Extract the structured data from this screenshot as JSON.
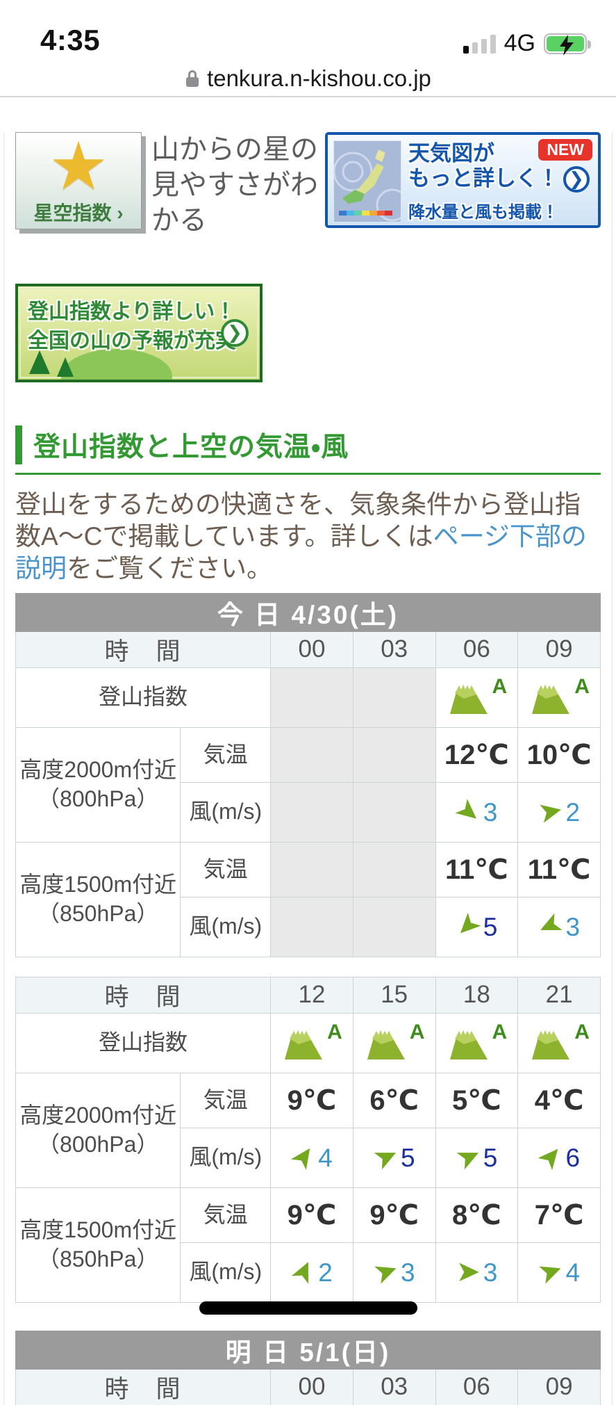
{
  "status_bar": {
    "time": "4:35",
    "network": "4G"
  },
  "url_bar": {
    "host": "tenkura.n-kishou.co.jp"
  },
  "promos": {
    "star": {
      "label": "星空指数",
      "chevron": "›",
      "caption": "山からの星の見やすさがわかる"
    },
    "map": {
      "title1": "天気図が",
      "title2": "もっと詳しく！",
      "arrow": "❯",
      "badge": "NEW",
      "sub": "降水量と風も掲載！"
    },
    "green": {
      "line1": "登山指数より詳しい！",
      "line2": "全国の山の予報が充実",
      "arrow": "❯"
    }
  },
  "section": {
    "title": "登山指数と上空の気温・風",
    "p_before": "登山をするための快適さを、気象条件から登山指数A～Cで掲載しています。詳しくは",
    "p_link": "ページ下部の説明",
    "p_after": "をご覧ください。"
  },
  "labels": {
    "time": "時　間",
    "index": "登山指数",
    "alt2000_1": "高度2000m付近",
    "alt2000_2": "（800hPa）",
    "alt1500_1": "高度1500m付近",
    "alt1500_2": "（850hPa）",
    "temp": "気温",
    "wind": "風(m/s)"
  },
  "tables": {
    "today": {
      "title": "今 日  4/30(土)",
      "am": {
        "times": [
          "00",
          "03",
          "06",
          "09"
        ],
        "index": [
          null,
          null,
          "A",
          "A"
        ],
        "temp2000": [
          "",
          "",
          "12℃",
          "10℃"
        ],
        "wind2000": [
          null,
          null,
          {
            "rot": 40,
            "val": "3",
            "tone": "light"
          },
          {
            "rot": -12,
            "val": "2",
            "tone": "light"
          }
        ],
        "temp1500": [
          "",
          "",
          "11℃",
          "11℃"
        ],
        "wind1500": [
          null,
          null,
          {
            "rot": 135,
            "val": "5",
            "tone": "dark"
          },
          {
            "rot": 155,
            "val": "3",
            "tone": "light"
          }
        ]
      },
      "pm": {
        "times": [
          "12",
          "15",
          "18",
          "21"
        ],
        "index": [
          "A",
          "A",
          "A",
          "A"
        ],
        "temp2000": [
          "9℃",
          "6℃",
          "5℃",
          "4℃"
        ],
        "wind2000": [
          {
            "rot": -55,
            "val": "4",
            "tone": "light"
          },
          {
            "rot": -25,
            "val": "5",
            "tone": "dark"
          },
          {
            "rot": -25,
            "val": "5",
            "tone": "dark"
          },
          {
            "rot": -50,
            "val": "6",
            "tone": "dark"
          }
        ],
        "temp1500": [
          "9℃",
          "9℃",
          "8℃",
          "7℃"
        ],
        "wind1500": [
          {
            "rot": -65,
            "val": "2",
            "tone": "light"
          },
          {
            "rot": -20,
            "val": "3",
            "tone": "light"
          },
          {
            "rot": 0,
            "val": "3",
            "tone": "light"
          },
          {
            "rot": -20,
            "val": "4",
            "tone": "light"
          }
        ]
      }
    },
    "tomorrow": {
      "title": "明 日  5/1(日)",
      "times": [
        "00",
        "03",
        "06",
        "09"
      ]
    }
  },
  "colors": {
    "accent_green": "#339933",
    "link_blue": "#4a94cc",
    "wind_light": "#3f96c8",
    "wind_dark": "#1b2f9e",
    "arrow_green": "#74a81f",
    "mountain_green": "#8db32e",
    "mountain_highlight": "#b8d05e",
    "index_a_green": "#3e8c1c",
    "header_gray": "#9b9b9b"
  }
}
